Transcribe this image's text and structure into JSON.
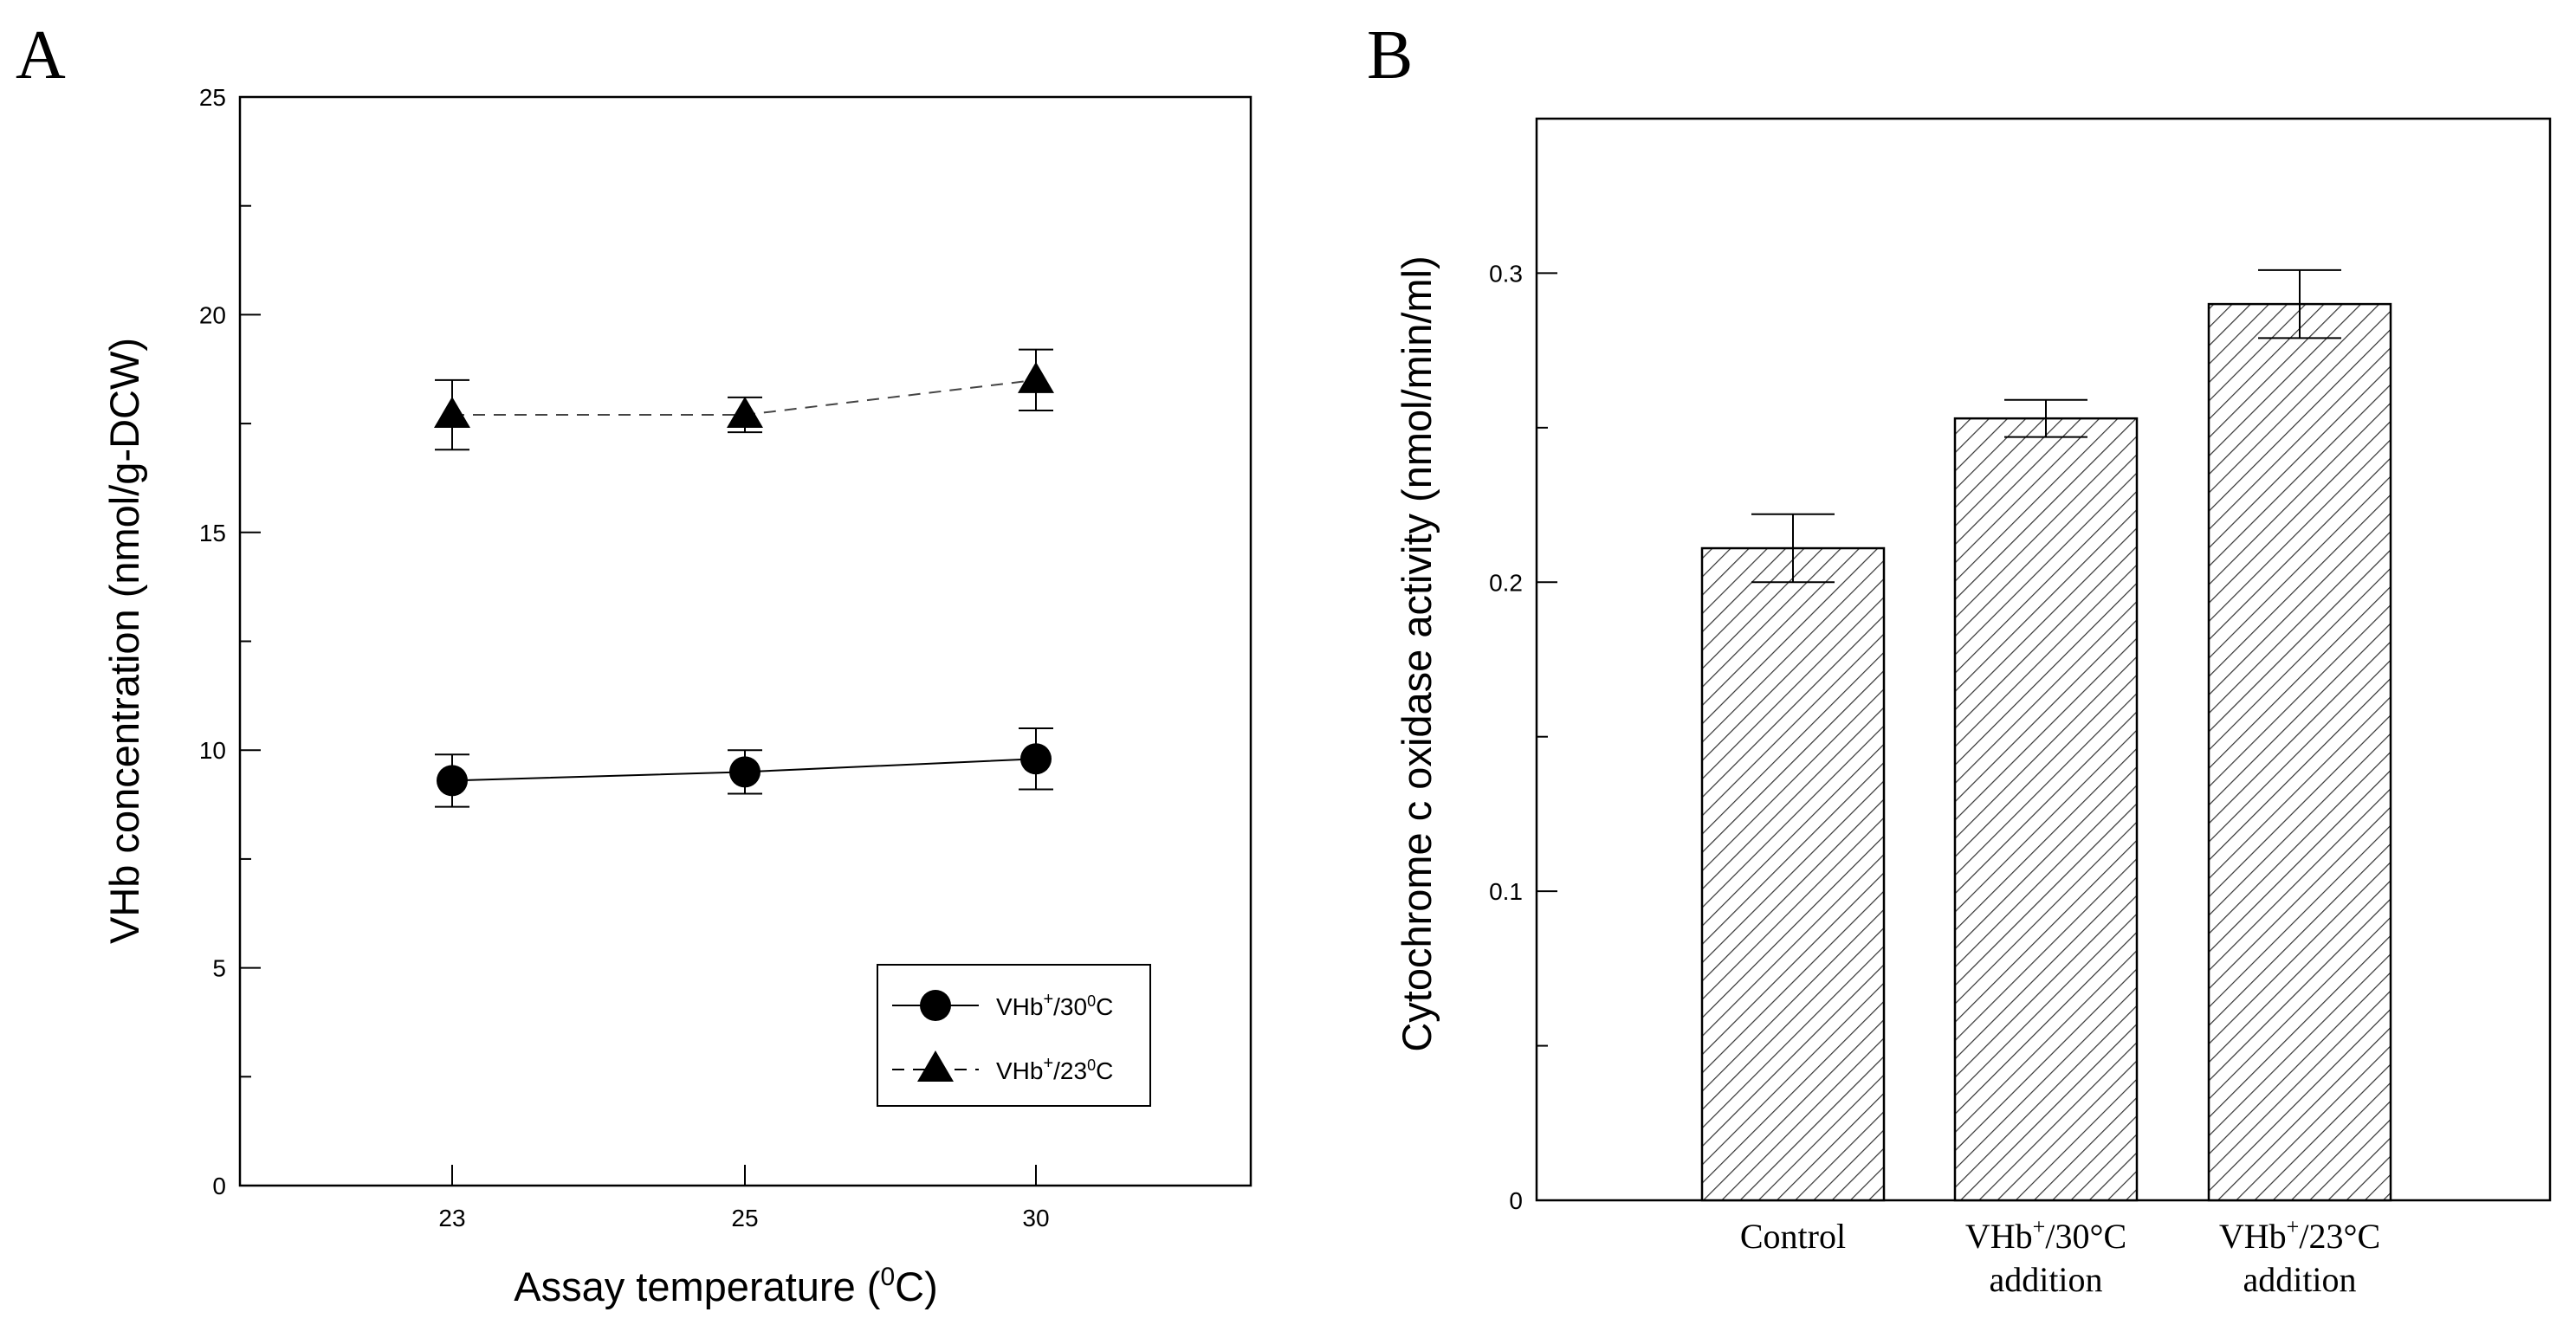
{
  "chart_data": [
    {
      "panel_label": "A",
      "type": "line",
      "xlabel": "Assay temperature (",
      "xlabel_sup": "0",
      "xlabel_end": "C)",
      "ylabel": "VHb concentration (nmol/g-DCW)",
      "categories": [
        "23",
        "25",
        "30"
      ],
      "ylim": [
        0,
        25
      ],
      "yticks": [
        "0",
        "5",
        "10",
        "15",
        "20",
        "25"
      ],
      "legend_position": "bottom-right",
      "series": [
        {
          "name_pre": "VHb",
          "name_sup": "+",
          "name_mid": "/30",
          "name_sup2": "0",
          "name_end": "C",
          "marker": "circle",
          "line": "solid",
          "values": [
            9.3,
            9.5,
            9.8
          ],
          "errors": [
            0.6,
            0.5,
            0.7
          ]
        },
        {
          "name_pre": "VHb",
          "name_sup": "+",
          "name_mid": "/23",
          "name_sup2": "0",
          "name_end": "C",
          "marker": "triangle",
          "line": "dashed",
          "values": [
            17.7,
            17.7,
            18.5
          ],
          "errors": [
            0.8,
            0.4,
            0.7
          ]
        }
      ]
    },
    {
      "panel_label": "B",
      "type": "bar",
      "ylabel": "Cytochrome c oxidase activity (nmol/min/ml)",
      "categories": [
        {
          "line1_pre": "Control",
          "line1_sup": "",
          "line1_end": "",
          "line2": ""
        },
        {
          "line1_pre": "VHb",
          "line1_sup": "+",
          "line1_end": "/30°C",
          "line2": "addition"
        },
        {
          "line1_pre": "VHb",
          "line1_sup": "+",
          "line1_end": "/23°C",
          "line2": "addition"
        }
      ],
      "values": [
        0.211,
        0.253,
        0.29
      ],
      "errors": [
        0.011,
        0.006,
        0.011
      ],
      "ylim": [
        0,
        0.35
      ],
      "yticks": [
        "0",
        "0.1",
        "0.2",
        "0.3"
      ],
      "fill": "hatched"
    }
  ]
}
